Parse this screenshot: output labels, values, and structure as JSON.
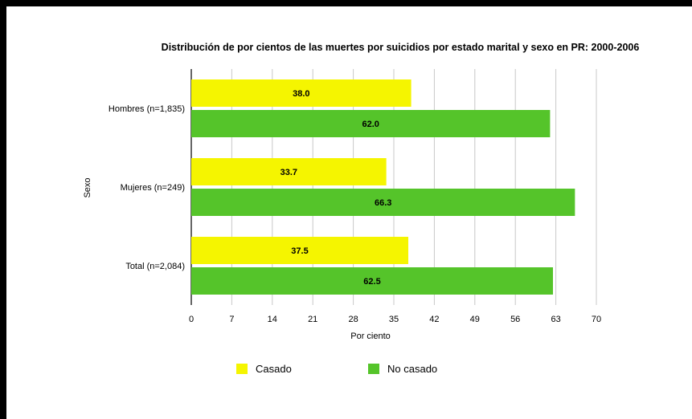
{
  "chart_data": {
    "type": "bar",
    "orientation": "horizontal",
    "title": "Distribución de por cientos de las muertes por suicidios por estado marital y sexo en PR: 2000-2006",
    "xlabel": "Por ciento",
    "ylabel": "Sexo",
    "categories": [
      "Hombres (n=1,835)",
      "Mujeres (n=249)",
      "Total (n=2,084)"
    ],
    "series": [
      {
        "name": "Casado",
        "values": [
          38.0,
          33.7,
          37.5
        ],
        "color": "#f5f500"
      },
      {
        "name": "No casado",
        "values": [
          62.0,
          66.3,
          62.5
        ],
        "color": "#55c42a"
      }
    ],
    "xlim": [
      0,
      70
    ],
    "xticks": [
      0,
      7,
      14,
      21,
      28,
      35,
      42,
      49,
      56,
      63,
      70
    ],
    "grid": true,
    "legend_position": "bottom",
    "data_labels": true
  }
}
